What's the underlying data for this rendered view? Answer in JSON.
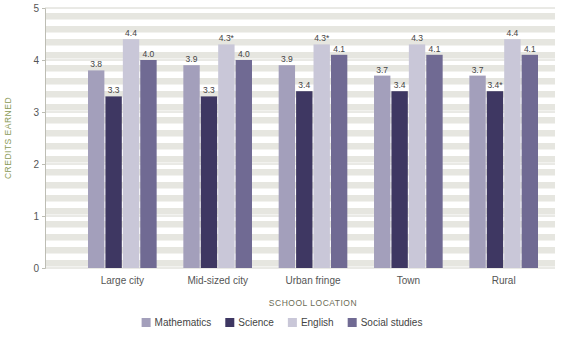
{
  "chart_data": {
    "type": "bar",
    "x_label": "SCHOOL LOCATION",
    "y_label": "CREDITS EARNED",
    "categories": [
      "Large city",
      "Mid-sized city",
      "Urban fringe",
      "Town",
      "Rural"
    ],
    "series": [
      {
        "name": "Mathematics",
        "color": "#a39fbb",
        "values": [
          3.8,
          3.9,
          3.9,
          3.7,
          3.7
        ],
        "value_labels": [
          "3.8",
          "3.9",
          "3.9",
          "3.7",
          "3.7"
        ]
      },
      {
        "name": "Science",
        "color": "#3e3762",
        "values": [
          3.3,
          3.3,
          3.4,
          3.4,
          3.4
        ],
        "value_labels": [
          "3.3",
          "3.3",
          "3.4",
          "3.4",
          "3.4*"
        ]
      },
      {
        "name": "English",
        "color": "#c9c7d8",
        "values": [
          4.4,
          4.3,
          4.3,
          4.3,
          4.4
        ],
        "value_labels": [
          "4.4",
          "4.3*",
          "4.3*",
          "4.3",
          "4.4"
        ]
      },
      {
        "name": "Social studies",
        "color": "#706a93",
        "values": [
          4.0,
          4.0,
          4.1,
          4.1,
          4.1
        ],
        "value_labels": [
          "4.0",
          "4.0",
          "4.1",
          "4.1",
          "4.1"
        ]
      }
    ],
    "ylim": [
      0,
      5
    ],
    "yticks": [
      0,
      1,
      2,
      3,
      4,
      5
    ],
    "grid": true,
    "legend": "bottom",
    "data_labels": true
  }
}
